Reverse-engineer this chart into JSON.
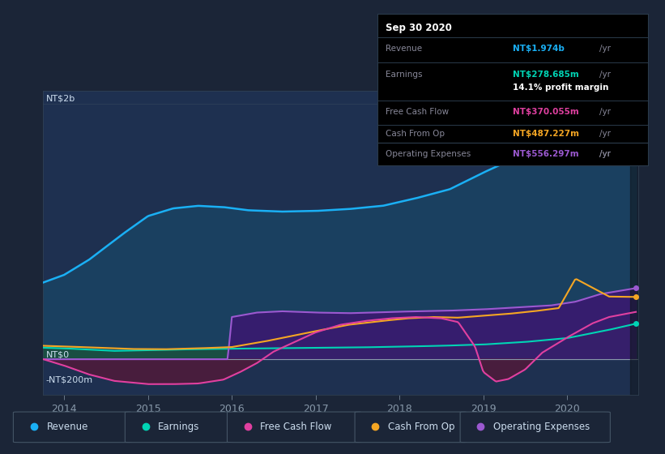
{
  "background_color": "#1b2537",
  "plot_bg_color": "#1e3050",
  "title": "Sep 30 2020",
  "ylabel_top": "NT$2b",
  "ylabel_zero": "NT$0",
  "ylabel_neg": "-NT$200m",
  "x_min": 2013.75,
  "x_max": 2020.85,
  "y_min": -280,
  "y_max": 2100,
  "y_zero": 0,
  "y_2b": 2000,
  "y_neg200": -200,
  "x_ticks": [
    2014,
    2015,
    2016,
    2017,
    2018,
    2019,
    2020
  ],
  "revenue_color": "#1ab0f5",
  "earnings_color": "#00d4b4",
  "fcf_color": "#e040a0",
  "cashfromop_color": "#f5a623",
  "opex_color": "#9b59d0",
  "revenue_fill": "#1a4060",
  "earnings_fill": "#1a5040",
  "opex_fill": "#3a1a70",
  "fcf_neg_fill": "#5a1535",
  "info_box": {
    "date": "Sep 30 2020",
    "revenue_label": "Revenue",
    "revenue_value": "NT$1.974b",
    "earnings_label": "Earnings",
    "earnings_value": "NT$278.685m",
    "margin_text": "14.1% profit margin",
    "fcf_label": "Free Cash Flow",
    "fcf_value": "NT$370.055m",
    "cfop_label": "Cash From Op",
    "cfop_value": "NT$487.227m",
    "opex_label": "Operating Expenses",
    "opex_value": "NT$556.297m"
  },
  "legend_items": [
    {
      "label": "Revenue",
      "color": "#1ab0f5"
    },
    {
      "label": "Earnings",
      "color": "#00d4b4"
    },
    {
      "label": "Free Cash Flow",
      "color": "#e040a0"
    },
    {
      "label": "Cash From Op",
      "color": "#f5a623"
    },
    {
      "label": "Operating Expenses",
      "color": "#9b59d0"
    }
  ]
}
